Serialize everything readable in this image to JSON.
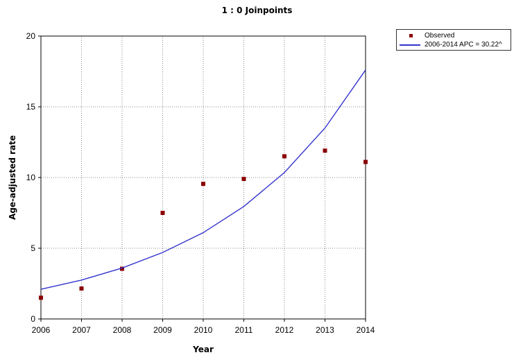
{
  "chart_data": {
    "type": "line",
    "title": "1 : 0 Joinpoints",
    "xlabel": "Year",
    "ylabel": "Age-adjusted rate",
    "x": [
      2006,
      2007,
      2008,
      2009,
      2010,
      2011,
      2012,
      2013,
      2014
    ],
    "xlim": [
      2006,
      2014
    ],
    "ylim": [
      0,
      20
    ],
    "yticks": [
      0,
      5,
      10,
      15,
      20
    ],
    "grid": true,
    "legend_position": "top-right outside plot",
    "series": [
      {
        "name": "Observed",
        "kind": "scatter",
        "color": "#8b0000",
        "values": [
          1.5,
          2.15,
          3.55,
          7.5,
          9.55,
          9.9,
          11.5,
          11.9,
          11.1
        ]
      },
      {
        "name": "2006-2014 APC  = 30.22^",
        "kind": "line",
        "color": "#3333cc",
        "values": [
          2.1,
          2.75,
          3.6,
          4.7,
          6.1,
          7.95,
          10.35,
          13.5,
          17.6
        ]
      }
    ]
  }
}
